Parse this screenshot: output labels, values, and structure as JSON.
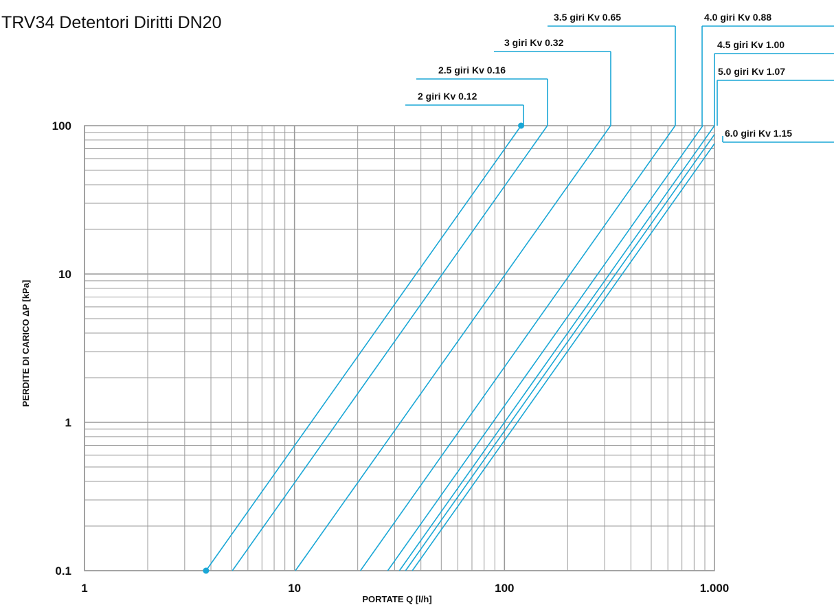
{
  "colors": {
    "series": "#1aa7d6",
    "grid": "#9a9a9a",
    "text": "#111111"
  },
  "chart_data": {
    "type": "line",
    "title": "TRV34 Detentori Diritti DN20",
    "xlabel": "PORTATE Q [l/h]",
    "ylabel": "PERDITE DI CARICO ΔP [kPa]",
    "xscale": "log",
    "yscale": "log",
    "xlim": [
      1,
      1000
    ],
    "ylim": [
      0.1,
      100
    ],
    "x_ticks": [
      "1",
      "10",
      "100",
      "1.000"
    ],
    "y_ticks": [
      "100",
      "10",
      "1",
      "0.1"
    ],
    "grid": true,
    "series": [
      {
        "name": "2 giri Kv 0.12",
        "kv": 0.12,
        "x": [
          3.79,
          120
        ],
        "y": [
          0.1,
          100
        ]
      },
      {
        "name": "2.5 giri Kv 0.16",
        "kv": 0.16,
        "x": [
          5.06,
          160
        ],
        "y": [
          0.1,
          100
        ]
      },
      {
        "name": "3 giri Kv 0.32",
        "kv": 0.32,
        "x": [
          10.1,
          320
        ],
        "y": [
          0.1,
          100
        ]
      },
      {
        "name": "3.5 giri Kv 0.65",
        "kv": 0.65,
        "x": [
          20.6,
          650
        ],
        "y": [
          0.1,
          100
        ]
      },
      {
        "name": "4.0 giri Kv 0.88",
        "kv": 0.88,
        "x": [
          27.8,
          880
        ],
        "y": [
          0.1,
          100
        ]
      },
      {
        "name": "4.5 giri Kv 1.00",
        "kv": 1.0,
        "x": [
          31.6,
          1000
        ],
        "y": [
          0.1,
          100
        ]
      },
      {
        "name": "5.0 giri Kv 1.07",
        "kv": 1.07,
        "x": [
          33.8,
          1000
        ],
        "y": [
          0.1,
          87.3
        ]
      },
      {
        "name": "6.0 giri Kv 1.15",
        "kv": 1.15,
        "x": [
          36.4,
          1000
        ],
        "y": [
          0.1,
          75.6
        ]
      }
    ],
    "markers": [
      {
        "series": "2 giri Kv 0.12",
        "x": 3.79,
        "y": 0.1
      },
      {
        "series": "2 giri Kv 0.12",
        "x": 120,
        "y": 100
      }
    ]
  }
}
